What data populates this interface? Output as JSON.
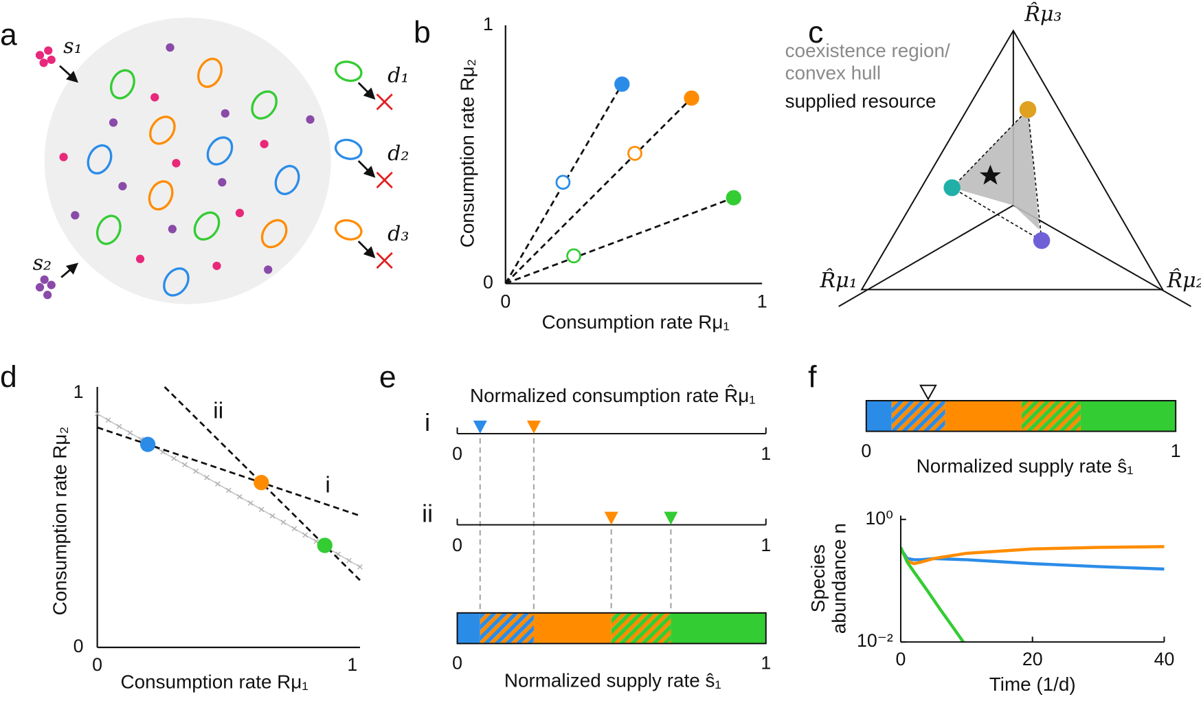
{
  "a": {
    "label": "a",
    "supplies": [
      "s₁",
      "s₂"
    ],
    "dilutions": [
      "d₁",
      "d₂",
      "d₃"
    ]
  },
  "b": {
    "label": "b",
    "type": "scatter",
    "xlabel": "Consumption rate Rμ₁",
    "ylabel": "Consumption rate Rμ₂",
    "xlim": [
      0,
      1
    ],
    "ylim": [
      0,
      1
    ],
    "xticks": [
      0,
      1
    ],
    "yticks": [
      0,
      1
    ],
    "series": [
      {
        "color": "#2b8ce8",
        "x": [
          0.454,
          0.224
        ],
        "values": [
          0.772,
          0.392
        ]
      },
      {
        "color": "#ff8c00",
        "x": [
          0.725,
          0.504
        ],
        "values": [
          0.718,
          0.504
        ]
      },
      {
        "color": "#33cc33",
        "x": [
          0.889,
          0.266
        ],
        "values": [
          0.332,
          0.107
        ]
      }
    ]
  },
  "c": {
    "label": "c",
    "axes": [
      "R̂μ₁",
      "R̂μ₂",
      "R̂μ₃"
    ],
    "legend": [
      "coexistence region/",
      "convex hull",
      "supplied resource"
    ],
    "colors": [
      "#e0a020",
      "#20b0a8",
      "#7060d8"
    ]
  },
  "d": {
    "label": "d",
    "type": "scatter",
    "xlabel": "Consumption rate Rμ₁",
    "ylabel": "Consumption rate Rμ₂",
    "xlim": [
      0,
      1
    ],
    "ylim": [
      0,
      1
    ],
    "xticks": [
      0,
      1
    ],
    "yticks": [
      0,
      1
    ],
    "x": [
      0.198,
      0.643,
      0.892
    ],
    "values": [
      0.798,
      0.648,
      0.401
    ],
    "colors": [
      "#2b8ce8",
      "#ff8c00",
      "#33cc33"
    ],
    "line_labels": [
      "i",
      "ii"
    ]
  },
  "e": {
    "label": "e",
    "title": "Normalized consumption rate R̂μ₁",
    "xlabel": "Normalized supply rate ŝ₁",
    "xlim": [
      0,
      1
    ],
    "xticks": [
      0,
      1
    ],
    "rows": [
      {
        "label": "i",
        "values": [
          0.074,
          0.248
        ],
        "colors": [
          "#2b8ce8",
          "#ff8c00"
        ]
      },
      {
        "label": "ii",
        "values": [
          0.499,
          0.692
        ],
        "colors": [
          "#ff8c00",
          "#33cc33"
        ]
      }
    ]
  },
  "f": {
    "label": "f",
    "bar": {
      "xlabel": "Normalized supply rate ŝ₁",
      "xlim": [
        0,
        1
      ],
      "xticks": [
        0,
        1
      ],
      "edges": [
        0.082,
        0.255,
        0.502,
        0.693
      ],
      "colors": [
        "#2b8ce8",
        "#ff8c00",
        "#33cc33"
      ],
      "marker": 0.2
    },
    "plot": {
      "type": "line",
      "xlabel": "Time (1/d)",
      "ylabel": [
        "Species",
        "abundance n"
      ],
      "xlim": [
        0,
        40
      ],
      "xticks": [
        0,
        20,
        40
      ],
      "ylim": [
        0.01,
        1
      ],
      "log_y": true,
      "yticks": [
        {
          "value": 1,
          "label": "10⁰"
        },
        {
          "value": 0.01,
          "label": "10⁻²"
        }
      ],
      "series": [
        {
          "color": "#2b8ce8",
          "x": [
            0,
            1,
            2,
            3,
            5,
            10,
            20,
            30,
            40
          ],
          "values": [
            0.33,
            0.23,
            0.22,
            0.22,
            0.23,
            0.22,
            0.19,
            0.17,
            0.155
          ]
        },
        {
          "color": "#ff8c00",
          "x": [
            0,
            1,
            2,
            3,
            5,
            10,
            20,
            30,
            40
          ],
          "values": [
            0.33,
            0.21,
            0.19,
            0.2,
            0.23,
            0.28,
            0.33,
            0.35,
            0.36
          ]
        },
        {
          "color": "#33cc33",
          "x": [
            0,
            1,
            2,
            4,
            6,
            8,
            9.5
          ],
          "values": [
            0.35,
            0.2,
            0.14,
            0.07,
            0.034,
            0.017,
            0.01
          ]
        }
      ]
    }
  }
}
